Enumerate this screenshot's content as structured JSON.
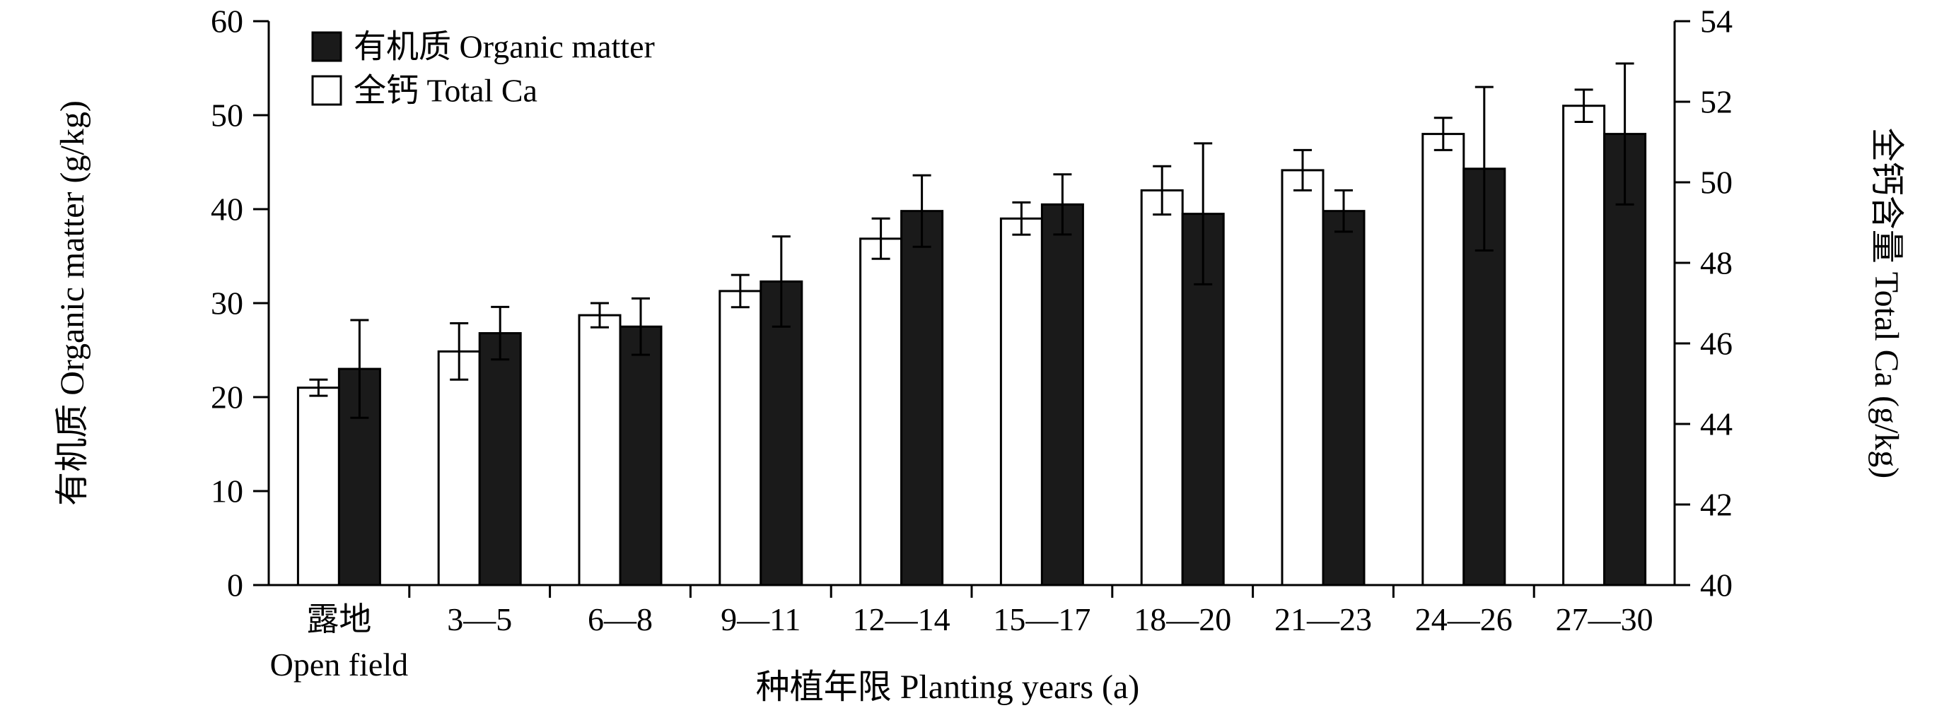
{
  "figure": {
    "background": "#ffffff"
  },
  "chart_data": {
    "type": "bar",
    "title": "",
    "categories": [
      "露地\nOpen field",
      "3—5",
      "6—8",
      "9—11",
      "12—14",
      "15—17",
      "18—20",
      "21—23",
      "24—26",
      "27—30"
    ],
    "x_axis": {
      "label": "种植年限 Planting years (a)"
    },
    "left_axis": {
      "label": "有机质 Organic matter (g/kg)",
      "min": 0,
      "max": 60,
      "ticks": [
        0,
        10,
        20,
        30,
        40,
        50,
        60
      ]
    },
    "right_axis": {
      "label": "全钙含量 Total Ca (g/kg)",
      "min": 40,
      "max": 54,
      "ticks": [
        40,
        42,
        44,
        46,
        48,
        50,
        52,
        54
      ]
    },
    "series": [
      {
        "name": "全钙 Total Ca",
        "axis": "right",
        "style": "open",
        "values": [
          44.9,
          45.8,
          46.7,
          47.3,
          48.6,
          49.1,
          49.8,
          50.3,
          51.2,
          51.9
        ],
        "errors": [
          0.2,
          0.7,
          0.3,
          0.4,
          0.5,
          0.4,
          0.6,
          0.5,
          0.4,
          0.4
        ]
      },
      {
        "name": "有机质 Organic matter",
        "axis": "left",
        "style": "filled",
        "values": [
          23.0,
          26.8,
          27.5,
          32.3,
          39.8,
          40.5,
          39.5,
          39.8,
          44.3,
          48.0
        ],
        "errors": [
          5.2,
          2.8,
          3.0,
          4.8,
          3.8,
          3.2,
          7.5,
          2.2,
          8.7,
          7.5
        ]
      }
    ],
    "legend": [
      {
        "label": "有机质 Organic matter",
        "style": "filled"
      },
      {
        "label": "全钙 Total Ca",
        "style": "open"
      }
    ],
    "legend_position": "top-left-inside",
    "grid": false,
    "colors": {
      "bar_fill": "#1a1a1a",
      "bar_open": "#ffffff",
      "stroke": "#000000"
    }
  }
}
